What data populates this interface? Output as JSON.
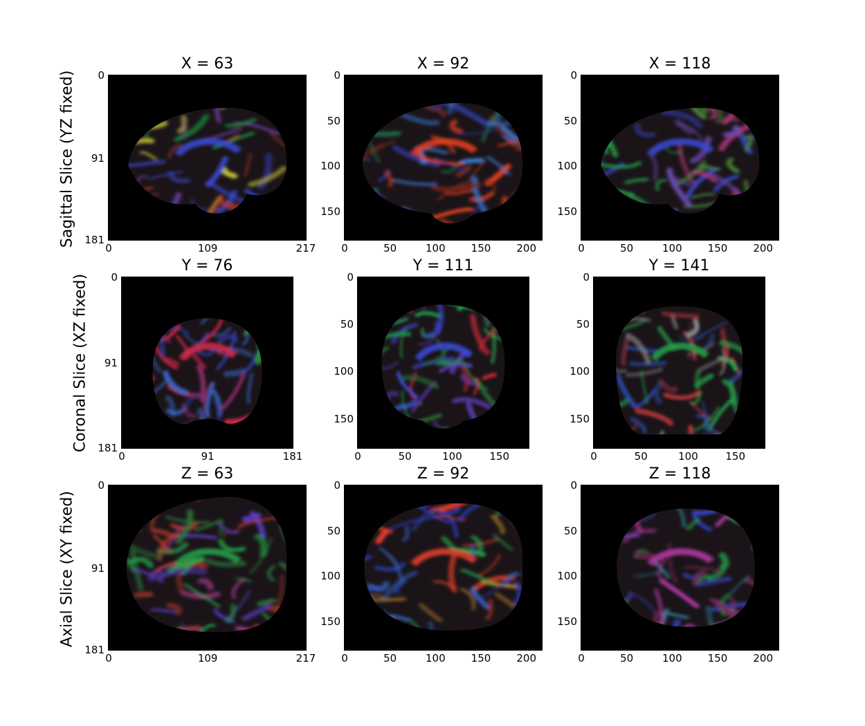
{
  "rows": [
    {
      "label": "Sagittal Slice (YZ fixed)",
      "panels": [
        {
          "title": "X = 63",
          "xticks": [
            "0",
            "109",
            "217"
          ],
          "yticks": [
            "0",
            "91",
            "181"
          ],
          "palette": [
            "#3a4ad8",
            "#1e8a3c",
            "#b83a2a",
            "#6a3aa0",
            "#c8c23a"
          ]
        },
        {
          "title": "X = 92",
          "xticks": [
            "0",
            "50",
            "100",
            "150",
            "200"
          ],
          "yticks": [
            "0",
            "50",
            "100",
            "150"
          ],
          "palette": [
            "#e8401e",
            "#2e3a9a",
            "#1f6e4a",
            "#7a2a1a",
            "#3a7ad0"
          ]
        },
        {
          "title": "X = 118",
          "xticks": [
            "0",
            "50",
            "100",
            "150",
            "200"
          ],
          "yticks": [
            "0",
            "50",
            "100",
            "150"
          ],
          "palette": [
            "#3a4ad8",
            "#24a34a",
            "#b03a7a",
            "#6a4ab0",
            "#4a8a3a"
          ]
        }
      ]
    },
    {
      "label": "Coronal Slice (XZ fixed)",
      "panels": [
        {
          "title": "Y = 76",
          "xticks": [
            "0",
            "91",
            "181"
          ],
          "yticks": [
            "0",
            "91",
            "181"
          ],
          "palette": [
            "#d8284a",
            "#2a3aa8",
            "#2a9a3a",
            "#8a2a6a",
            "#3a6ad0"
          ]
        },
        {
          "title": "Y = 111",
          "xticks": [
            "0",
            "50",
            "100",
            "150"
          ],
          "yticks": [
            "0",
            "50",
            "100",
            "150"
          ],
          "palette": [
            "#3a4ad8",
            "#24a34a",
            "#c8283a",
            "#5a3ab0",
            "#2a7a3a"
          ]
        },
        {
          "title": "Y = 141",
          "xticks": [
            "0",
            "50",
            "100",
            "150"
          ],
          "yticks": [
            "0",
            "50",
            "100",
            "150"
          ],
          "palette": [
            "#24a34a",
            "#7a2a3a",
            "#2a4aa8",
            "#c83a3a",
            "#8a8a8a"
          ]
        }
      ]
    },
    {
      "label": "Axial Slice (XY fixed)",
      "panels": [
        {
          "title": "Z = 63",
          "xticks": [
            "0",
            "109",
            "217"
          ],
          "yticks": [
            "0",
            "91",
            "181"
          ],
          "palette": [
            "#24a34a",
            "#b83a2a",
            "#5a3ac0",
            "#2a7a3a",
            "#a83a8a"
          ]
        },
        {
          "title": "Z = 92",
          "xticks": [
            "0",
            "50",
            "100",
            "150",
            "200"
          ],
          "yticks": [
            "0",
            "50",
            "100",
            "150"
          ],
          "palette": [
            "#e8402a",
            "#24a34a",
            "#2a3ab0",
            "#c88a2a",
            "#3a6ad0"
          ]
        },
        {
          "title": "Z = 118",
          "xticks": [
            "0",
            "50",
            "100",
            "150",
            "200"
          ],
          "yticks": [
            "0",
            "50",
            "100",
            "150"
          ],
          "palette": [
            "#b83aa8",
            "#3a4ad8",
            "#24a34a",
            "#7a2a5a",
            "#2a8aa8"
          ]
        }
      ]
    }
  ]
}
